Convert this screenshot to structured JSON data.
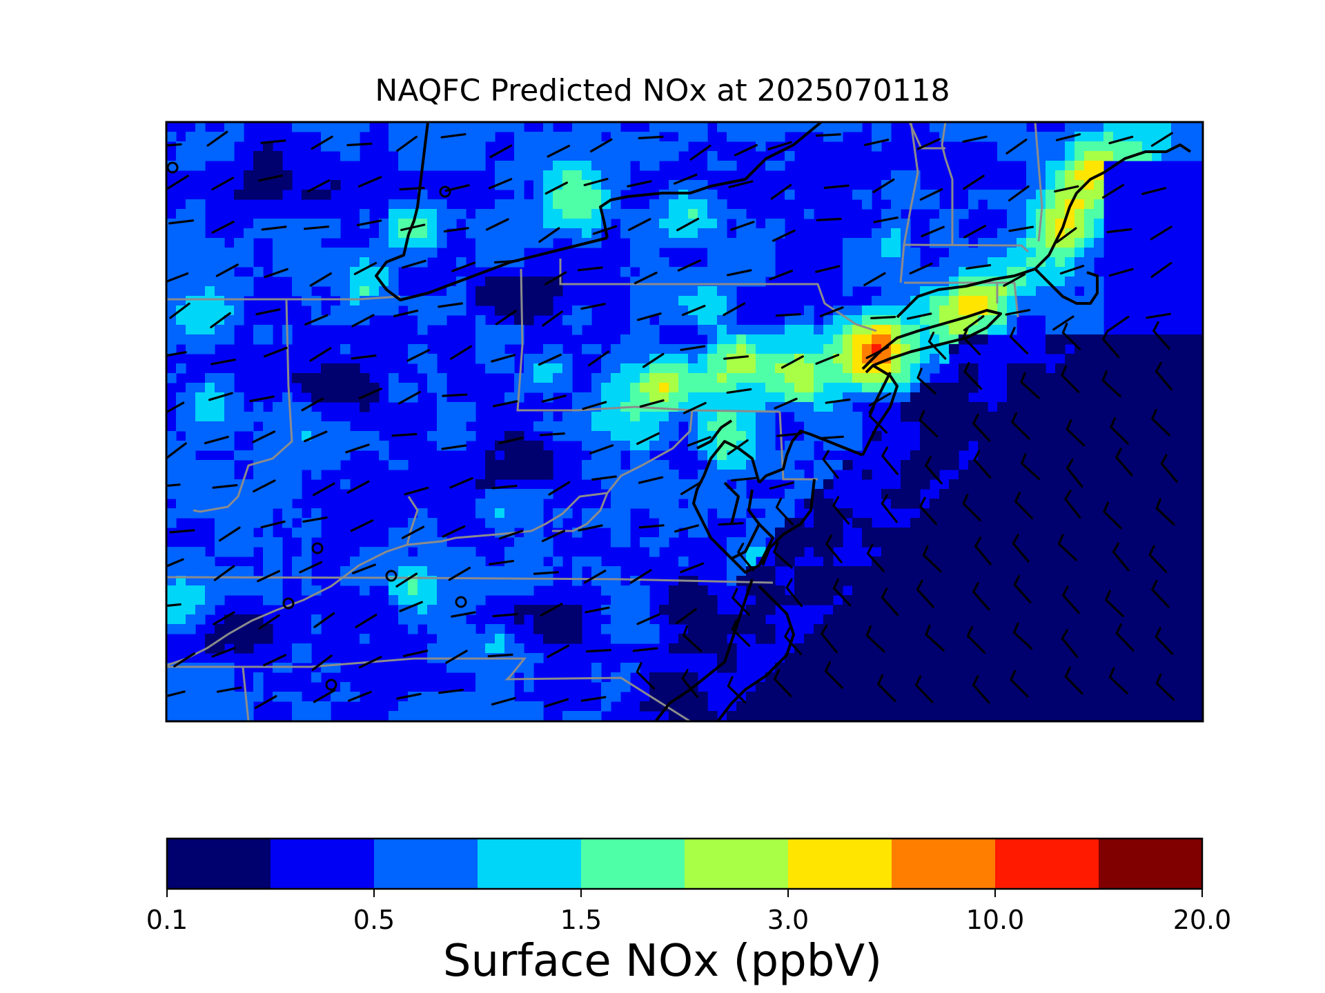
{
  "title": "NAQFC Predicted NOx at 2025070118",
  "colorbar": {
    "label": "Surface NOx (ppbV)",
    "ticks": [
      "0.1",
      "0.5",
      "1.5",
      "3.0",
      "10.0",
      "20.0"
    ],
    "colors": [
      "#00006e",
      "#0000f5",
      "#0064ff",
      "#00d6f7",
      "#4fffa7",
      "#a8ff46",
      "#ffe500",
      "#ff7e00",
      "#ff1a00",
      "#800000"
    ]
  },
  "legend_icon": "wind-barb-icon"
}
